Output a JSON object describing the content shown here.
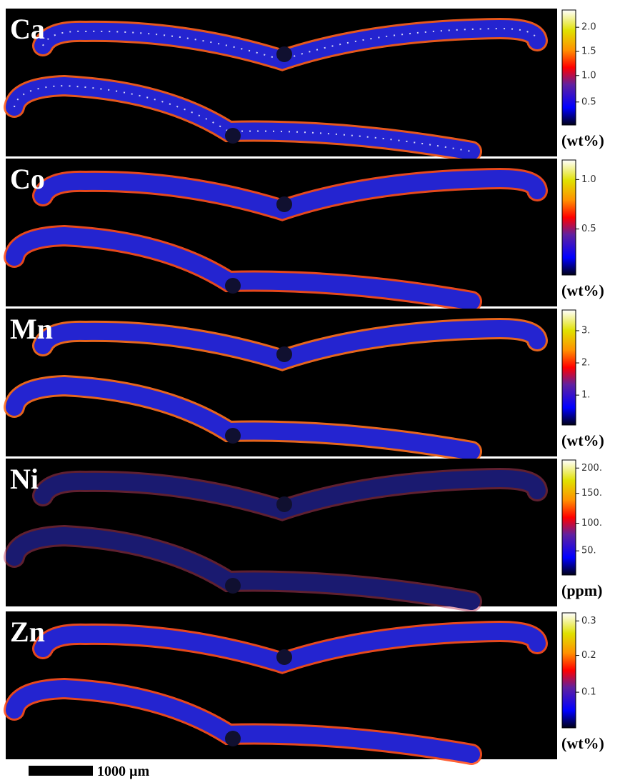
{
  "panels": [
    {
      "element": "Ca",
      "ticks": [
        "2.0",
        "1.5",
        "1.0",
        "0.5"
      ],
      "unit": "(wt%)"
    },
    {
      "element": "Co",
      "ticks": [
        "1.0",
        "0.5"
      ],
      "unit": "(wt%)"
    },
    {
      "element": "Mn",
      "ticks": [
        "3.",
        "2.",
        "1."
      ],
      "unit": "(wt%)"
    },
    {
      "element": "Ni",
      "ticks": [
        "200.",
        "150.",
        "100.",
        "50."
      ],
      "unit": "(ppm)"
    },
    {
      "element": "Zn",
      "ticks": [
        "0.3",
        "0.2",
        "0.1"
      ],
      "unit": "(wt%)"
    }
  ],
  "scale_bar": {
    "label": "1000 µm"
  }
}
